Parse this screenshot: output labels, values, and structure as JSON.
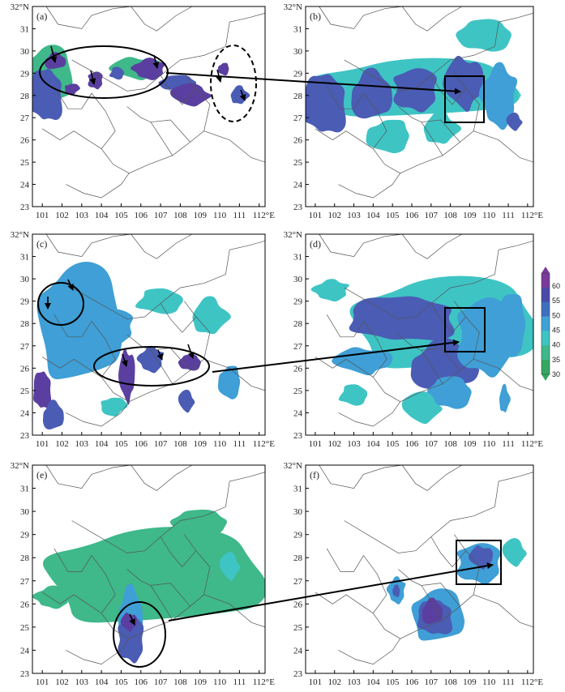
{
  "panels": [
    {
      "label": "(a)"
    },
    {
      "label": "(b)"
    },
    {
      "label": "(c)"
    },
    {
      "label": "(d)"
    },
    {
      "label": "(e)"
    },
    {
      "label": "(f)"
    }
  ],
  "lat_ticks": [
    {
      "value": 32,
      "label": "32°N"
    },
    {
      "value": 31,
      "label": "31"
    },
    {
      "value": 30,
      "label": "30"
    },
    {
      "value": 29,
      "label": "29"
    },
    {
      "value": 28,
      "label": "28"
    },
    {
      "value": 27,
      "label": "27"
    },
    {
      "value": 26,
      "label": "26"
    },
    {
      "value": 25,
      "label": "25"
    },
    {
      "value": 24,
      "label": "24"
    },
    {
      "value": 23,
      "label": "23"
    }
  ],
  "lon_ticks": [
    {
      "value": 101,
      "label": "101"
    },
    {
      "value": 102,
      "label": "102"
    },
    {
      "value": 103,
      "label": "103"
    },
    {
      "value": 104,
      "label": "104"
    },
    {
      "value": 105,
      "label": "105"
    },
    {
      "value": 106,
      "label": "106"
    },
    {
      "value": 107,
      "label": "107"
    },
    {
      "value": 108,
      "label": "108"
    },
    {
      "value": 109,
      "label": "109"
    },
    {
      "value": 110,
      "label": "110"
    },
    {
      "value": 111,
      "label": "111"
    },
    {
      "value": 112,
      "label": "112°E"
    }
  ],
  "colorbar": {
    "ticks": [
      "60",
      "55",
      "50",
      "45",
      "40",
      "35",
      "30"
    ],
    "colors": [
      "#7a3a9a",
      "#4a4aa8",
      "#3f6fbf",
      "#3fa2d6",
      "#3fc4c4",
      "#3fb88a",
      "#34a860"
    ]
  },
  "colors": {
    "dbz30": "#3fb88a",
    "dbz40": "#3fc4c4",
    "dbz45": "#3f9fd6",
    "dbz50": "#4a5cb4",
    "dbz55": "#5a3fa0",
    "border": "#555555",
    "arrow": "#000000"
  }
}
